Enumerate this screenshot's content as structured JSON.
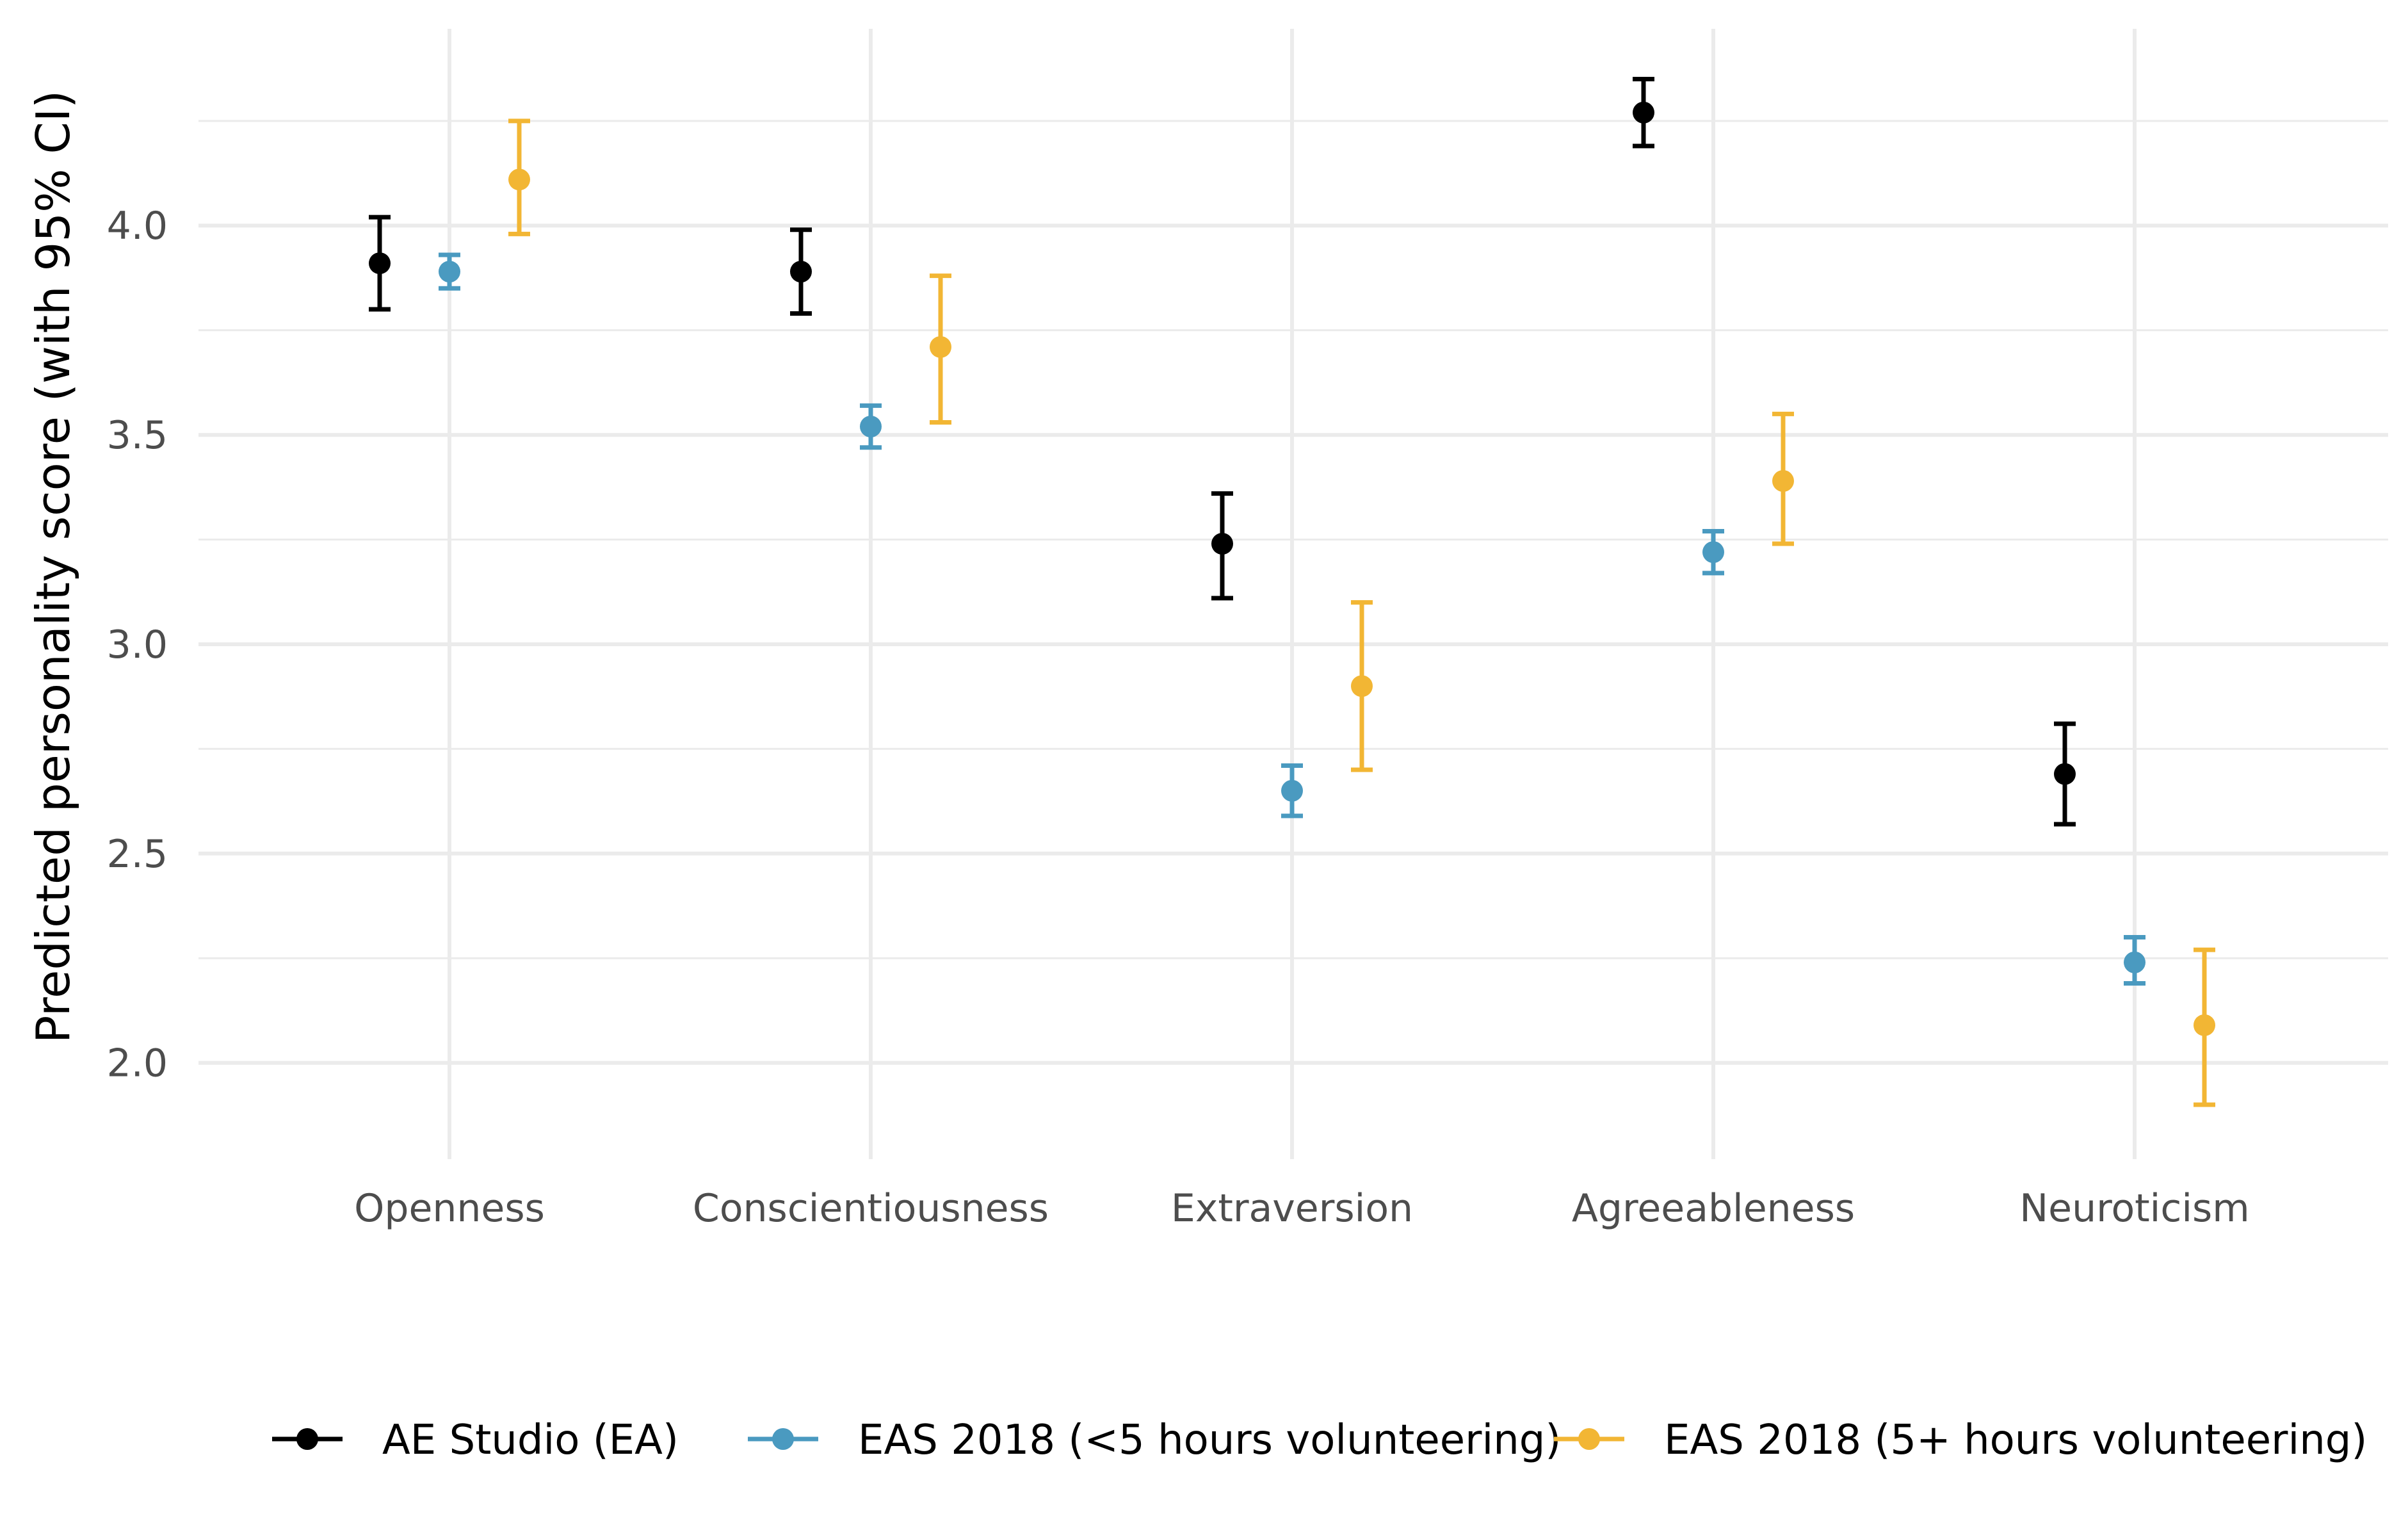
{
  "chart_data": {
    "type": "scatter",
    "subtype": "point-with-errorbars (dodged)",
    "title": "",
    "xlabel": "",
    "ylabel": "Predicted personality score (with 95% CI)",
    "categories": [
      "Openness",
      "Conscientiousness",
      "Extraversion",
      "Agreeableness",
      "Neuroticism"
    ],
    "ylim": [
      1.77,
      4.47
    ],
    "yticks": [
      2.0,
      2.5,
      3.0,
      3.5,
      4.0
    ],
    "ytick_labels": [
      "2.0",
      "2.5",
      "3.0",
      "3.5",
      "4.0"
    ],
    "grid": true,
    "legend_position": "bottom",
    "series": [
      {
        "name": "AE Studio (EA)",
        "color": "#000000",
        "values": [
          3.91,
          3.89,
          3.24,
          4.27,
          2.69
        ],
        "ci_low": [
          3.8,
          3.79,
          3.11,
          4.19,
          2.57
        ],
        "ci_high": [
          4.02,
          3.99,
          3.36,
          4.35,
          2.81
        ]
      },
      {
        "name": "EAS 2018 (<5 hours volunteering)",
        "color": "#4a9ac0",
        "values": [
          3.89,
          3.52,
          2.65,
          3.22,
          2.24
        ],
        "ci_low": [
          3.85,
          3.47,
          2.59,
          3.17,
          2.19
        ],
        "ci_high": [
          3.93,
          3.57,
          2.71,
          3.27,
          2.3
        ]
      },
      {
        "name": "EAS 2018 (5+ hours volunteering)",
        "color": "#f2b634",
        "values": [
          4.11,
          3.71,
          2.9,
          3.39,
          2.09
        ],
        "ci_low": [
          3.98,
          3.53,
          2.7,
          3.24,
          1.9
        ],
        "ci_high": [
          4.25,
          3.88,
          3.1,
          3.55,
          2.27
        ]
      }
    ]
  }
}
